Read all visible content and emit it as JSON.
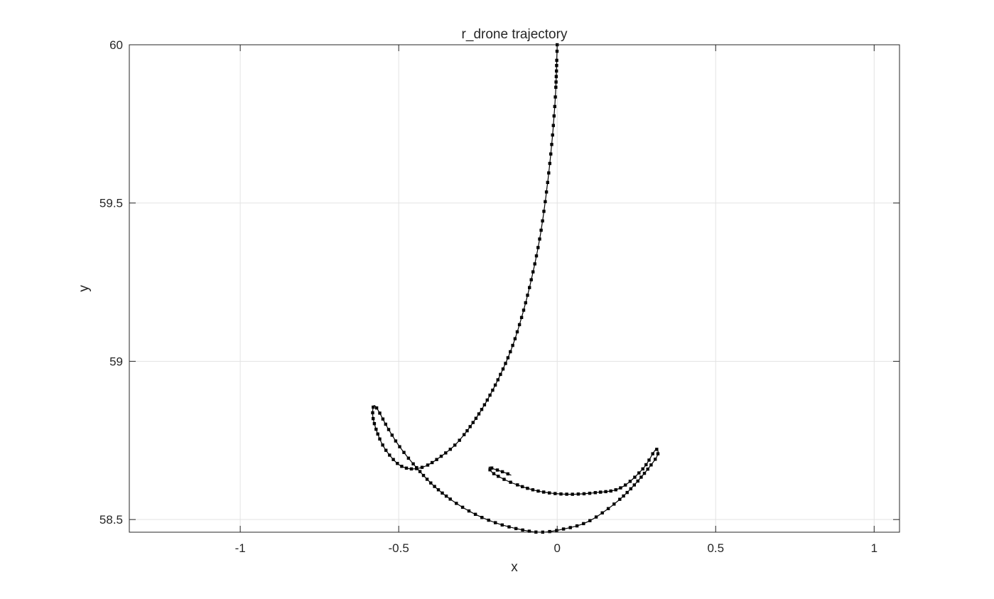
{
  "chart_data": {
    "type": "line",
    "title": "r_drone trajectory",
    "xlabel": "x",
    "ylabel": "y",
    "xlim": [
      -1.35,
      1.08
    ],
    "ylim": [
      58.46,
      60.0
    ],
    "xticks": [
      -1,
      -0.5,
      0,
      0.5,
      1
    ],
    "xtick_labels": [
      "-1",
      "-0.5",
      "0",
      "0.5",
      "1"
    ],
    "yticks": [
      58.5,
      59,
      59.5,
      60
    ],
    "ytick_labels": [
      "58.5",
      "59",
      "59.5",
      "60"
    ],
    "grid": true,
    "box": true,
    "line_color": "#000000",
    "marker": "square",
    "series": [
      {
        "x": [
          0.0,
          -0.005,
          -0.016,
          -0.032,
          -0.053,
          -0.079,
          -0.109,
          -0.144,
          -0.183,
          -0.225,
          -0.27,
          -0.318,
          -0.366,
          -0.413,
          -0.456,
          -0.494,
          -0.526,
          -0.553,
          -0.573,
          -0.582,
          -0.578,
          -0.562,
          -0.535,
          -0.497,
          -0.449,
          -0.393,
          -0.331,
          -0.265,
          -0.195,
          -0.123,
          -0.053,
          0.02,
          0.09,
          0.155,
          0.215,
          0.27,
          0.315,
          0.31,
          0.27,
          0.2,
          0.12,
          0.03,
          -0.06,
          -0.14,
          -0.2,
          -0.215,
          -0.2,
          -0.17,
          -0.145
        ],
        "y": [
          60.0,
          59.85,
          59.7,
          59.55,
          59.4,
          59.27,
          59.15,
          59.04,
          58.95,
          58.87,
          58.8,
          58.74,
          58.7,
          58.67,
          58.66,
          58.67,
          58.7,
          58.74,
          58.79,
          58.83,
          58.86,
          58.84,
          58.79,
          58.73,
          58.67,
          58.61,
          58.56,
          58.52,
          58.49,
          58.47,
          58.46,
          58.47,
          58.49,
          58.53,
          58.58,
          58.64,
          58.7,
          58.72,
          58.66,
          58.6,
          58.585,
          58.58,
          58.59,
          58.615,
          58.645,
          58.665,
          58.66,
          58.65,
          58.64
        ]
      }
    ]
  }
}
